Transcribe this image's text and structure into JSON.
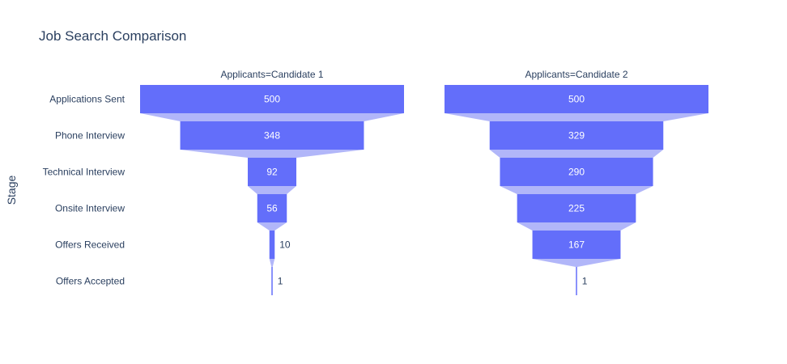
{
  "chart_data": {
    "type": "funnel",
    "title": "Job Search Comparison",
    "ylabel": "Stage",
    "categories": [
      "Applications Sent",
      "Phone Interview",
      "Technical Interview",
      "Onsite Interview",
      "Offers Received",
      "Offers Accepted"
    ],
    "facet_label_prefix": "Applicants=",
    "series": [
      {
        "name": "Candidate 1",
        "facet_label": "Applicants=Candidate 1",
        "values": [
          500,
          348,
          92,
          56,
          10,
          1
        ]
      },
      {
        "name": "Candidate 2",
        "facet_label": "Applicants=Candidate 2",
        "values": [
          500,
          329,
          290,
          225,
          167,
          1
        ]
      }
    ],
    "colors": {
      "bar": "#636efa",
      "connector": "#b1b6f9",
      "text": "#2a3f5f"
    },
    "grid": false,
    "legend": "none"
  }
}
